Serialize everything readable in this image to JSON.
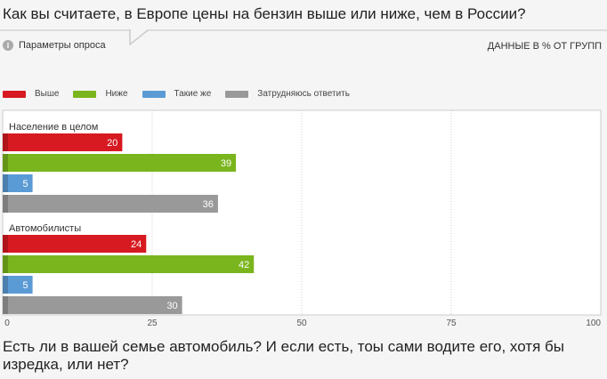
{
  "header": {
    "title": "Как вы считаете, в Европе цены на бензин выше или ниже, чем в России?",
    "params_label": "Параметры опроса",
    "units_label": "ДАННЫЕ В % ОТ ГРУПП"
  },
  "chart_data": {
    "type": "bar",
    "orientation": "horizontal",
    "title": "Как вы считаете, в Европе цены на бензин выше или ниже, чем в России?",
    "categories": [
      "Население в целом",
      "Автомобилисты"
    ],
    "series": [
      {
        "name": "Выше",
        "color": "#d71921",
        "values": [
          20,
          24
        ]
      },
      {
        "name": "Ниже",
        "color": "#7ab51d",
        "values": [
          39,
          42
        ]
      },
      {
        "name": "Такие же",
        "color": "#5b9bd5",
        "values": [
          5,
          5
        ]
      },
      {
        "name": "Затрудняюсь ответить",
        "color": "#999999",
        "values": [
          36,
          30
        ]
      }
    ],
    "xlim": [
      0,
      100
    ],
    "xticks": [
      0,
      25,
      50,
      75,
      100
    ],
    "grid": true,
    "legend": "top-left"
  },
  "footer": {
    "next_question": "Есть ли в вашей семье автомобиль? И если есть, тоы сами водите его, хотя бы изредка, или нет?"
  }
}
